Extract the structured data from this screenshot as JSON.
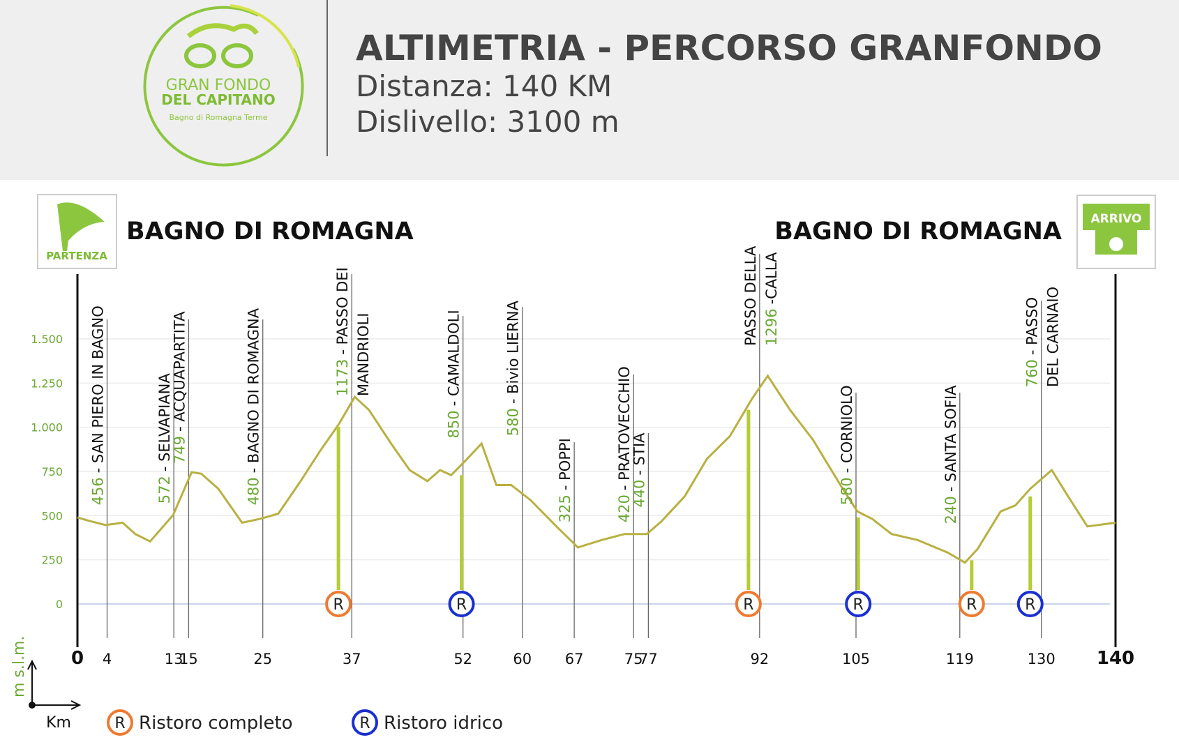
{
  "header": {
    "logo": {
      "line1": "GRAN FONDO",
      "line2": "DEL CAPITANO",
      "line3": "Bagno di Romagna Terme"
    },
    "title": "ALTIMETRIA - PERCORSO GRANFONDO",
    "distance": "Distanza: 140 KM",
    "climb": "Dislivello: 3100 m"
  },
  "start": {
    "badge": "PARTENZA",
    "place": "BAGNO DI ROMAGNA"
  },
  "finish": {
    "badge": "ARRIVO",
    "place": "BAGNO DI ROMAGNA"
  },
  "chart_data": {
    "type": "line",
    "color": "#b9b041",
    "x": [
      0,
      1.7,
      3.8,
      6.1,
      7.8,
      9.8,
      12.9,
      15.4,
      16.7,
      19,
      22.2,
      24.6,
      27.1,
      30.1,
      32.7,
      35.2,
      37.4,
      39.3,
      42.3,
      44.8,
      47.2,
      48.9,
      50.4,
      52.4,
      54.5,
      56.5,
      58.5,
      61.1,
      64.6,
      67.5,
      70.7,
      73.8,
      76.8,
      78.8,
      81.9,
      84.9,
      88,
      91,
      93.1,
      96.1,
      99.2,
      103.2,
      105.2,
      107.2,
      109.8,
      113.3,
      117.4,
      119.7,
      121.4,
      124.5,
      126.5,
      128.5,
      131.4,
      133.6,
      136.2,
      140
    ],
    "values": [
      490,
      469,
      447,
      460,
      396,
      354,
      503,
      746,
      737,
      652,
      460,
      481,
      511,
      695,
      865,
      1014,
      1172,
      1099,
      908,
      758,
      695,
      758,
      729,
      814,
      908,
      673,
      673,
      588,
      439,
      320,
      362,
      396,
      396,
      469,
      609,
      822,
      950,
      1163,
      1291,
      1099,
      929,
      652,
      524,
      481,
      396,
      362,
      290,
      234,
      311,
      524,
      558,
      652,
      758,
      609,
      439,
      460
    ],
    "xlim": [
      0,
      140
    ],
    "ylim": [
      0,
      1500
    ],
    "xticks": [
      0,
      4,
      13,
      15,
      25,
      37,
      52,
      60,
      67,
      75,
      77,
      92,
      105,
      119,
      130,
      140
    ],
    "yticks": [
      0,
      250,
      500,
      750,
      {
        "value": 1000,
        "label": "1.000"
      },
      {
        "value": 1250,
        "label": "1.250"
      },
      {
        "value": 1500,
        "label": "1.500"
      }
    ],
    "grid": true,
    "ylabel": "m s.l.m.",
    "xlabel": "Km",
    "waypoints": [
      {
        "km": 4,
        "elevation": 456,
        "name": "- SAN PIERO IN BAGNO"
      },
      {
        "km": 13,
        "elevation": 572,
        "name": "- SELVAPIANA"
      },
      {
        "km": 15,
        "elevation": 749,
        "name": "- ACQUAPARTITA"
      },
      {
        "km": 25,
        "elevation": 480,
        "name": "- BAGNO DI ROMAGNA"
      },
      {
        "km": 37,
        "elevation": 1173,
        "name": "- PASSO DEI",
        "suffix": "MANDRIOLI"
      },
      {
        "km": 52,
        "elevation": 850,
        "name": "- CAMALDOLI"
      },
      {
        "km": 60,
        "elevation": 580,
        "name": "- Bivio LIERNA"
      },
      {
        "km": 67,
        "elevation": 325,
        "name": "- POPPI"
      },
      {
        "km": 75,
        "elevation": 420,
        "name": "- PRATOVECCHIO"
      },
      {
        "km": 77,
        "elevation": 440,
        "name": "- STIA"
      },
      {
        "km": 92,
        "elevation": 1296,
        "name": "-CALLA",
        "prefix": "PASSO DELLA"
      },
      {
        "km": 105,
        "elevation": 580,
        "name": "- CORNIOLO"
      },
      {
        "km": 119,
        "elevation": 240,
        "name": "- SANTA SOFIA"
      },
      {
        "km": 130,
        "elevation": 760,
        "name": "- PASSO",
        "suffix": "DEL CARNAIO"
      }
    ],
    "marker": "R",
    "legend": [
      {
        "label": "Ristoro completo",
        "color": "#ee7a30"
      },
      {
        "label": "Ristoro idrico",
        "color": "#1a2fd0"
      }
    ],
    "ristori": [
      {
        "km": 35.2,
        "height": 1001,
        "color": "#ee7a30"
      },
      {
        "km": 51.8,
        "height": 729,
        "color": "#1a2fd0"
      },
      {
        "km": 90.5,
        "height": 1099,
        "color": "#ee7a30"
      },
      {
        "km": 105.3,
        "height": 490,
        "color": "#1a2fd0"
      },
      {
        "km": 120.6,
        "height": 247,
        "color": "#ee7a30"
      },
      {
        "km": 128.5,
        "height": 609,
        "color": "#1a2fd0"
      }
    ]
  }
}
